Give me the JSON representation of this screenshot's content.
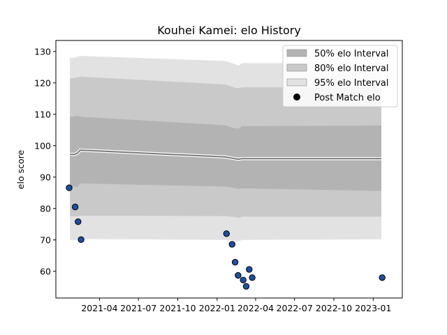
{
  "chart_data": {
    "type": "line",
    "title": "Kouhei Kamei: elo History",
    "xlabel": "",
    "ylabel": "elo score",
    "ylim": [
      51.5,
      133.5
    ],
    "xlim": [
      "2020-12-20",
      "2023-03-10"
    ],
    "yticks": [
      60,
      70,
      80,
      90,
      100,
      110,
      120,
      130
    ],
    "xticks": [
      "2021-04",
      "2021-07",
      "2021-10",
      "2022-01",
      "2022-04",
      "2022-07",
      "2022-10",
      "2023-01"
    ],
    "legend": {
      "position": "top-right",
      "entries": [
        "50% elo Interval",
        "80% elo Interval",
        "95% elo Interval",
        "Post Match elo"
      ]
    },
    "colors": {
      "band50": "#b3b3b3",
      "band80": "#c9c9c9",
      "band95": "#e2e2e2",
      "mean": "#7a7a7a",
      "point": "#1f4fa0",
      "point_edge": "#000000"
    },
    "mean_series": {
      "x": [
        "2021-01-22",
        "2021-02-01",
        "2021-02-08",
        "2021-02-15",
        "2022-01-20",
        "2022-02-10",
        "2022-02-20",
        "2022-03-01",
        "2023-01-20"
      ],
      "y": [
        97.2,
        97.2,
        97.6,
        98.6,
        96.4,
        95.9,
        95.7,
        95.9,
        95.9
      ]
    },
    "bands": [
      {
        "name": "95% elo Interval",
        "x": [
          "2021-01-22",
          "2021-02-01",
          "2021-02-08",
          "2021-02-15",
          "2022-01-20",
          "2022-02-10",
          "2022-02-20",
          "2022-03-01",
          "2023-01-20"
        ],
        "lower": [
          70.0,
          70.0,
          70.0,
          70.3,
          70.0,
          69.8,
          69.6,
          70.0,
          70.2
        ],
        "upper": [
          128.0,
          128.0,
          128.3,
          128.6,
          127.0,
          126.0,
          125.5,
          126.3,
          126.3
        ]
      },
      {
        "name": "80% elo Interval",
        "x": [
          "2021-01-22",
          "2021-02-01",
          "2021-02-08",
          "2021-02-15",
          "2022-01-20",
          "2022-02-10",
          "2022-02-20",
          "2022-03-01",
          "2023-01-20"
        ],
        "lower": [
          77.5,
          77.5,
          77.5,
          77.7,
          77.6,
          77.3,
          77.0,
          77.4,
          77.4
        ],
        "upper": [
          121.5,
          121.5,
          121.8,
          122.0,
          119.5,
          118.5,
          118.3,
          118.6,
          118.6
        ]
      },
      {
        "name": "50% elo Interval",
        "x": [
          "2021-01-22",
          "2021-02-01",
          "2021-02-08",
          "2021-02-15",
          "2022-01-20",
          "2022-02-10",
          "2022-02-20",
          "2022-03-01",
          "2023-01-20"
        ],
        "lower": [
          87.0,
          87.0,
          86.8,
          88.0,
          87.0,
          86.6,
          86.2,
          86.4,
          85.6
        ],
        "upper": [
          109.3,
          109.3,
          109.6,
          109.2,
          106.5,
          105.6,
          105.4,
          106.2,
          106.4
        ]
      }
    ],
    "points": {
      "name": "Post Match elo",
      "x": [
        "2021-01-20",
        "2021-02-03",
        "2021-02-10",
        "2021-02-17",
        "2022-01-23",
        "2022-02-05",
        "2022-02-12",
        "2022-02-19",
        "2022-03-03",
        "2022-03-10",
        "2022-03-17",
        "2022-03-24",
        "2023-01-22"
      ],
      "y": [
        86.6,
        80.5,
        75.8,
        70.1,
        72.0,
        68.6,
        62.9,
        58.7,
        57.2,
        55.2,
        60.6,
        58.0,
        58.0
      ]
    }
  }
}
